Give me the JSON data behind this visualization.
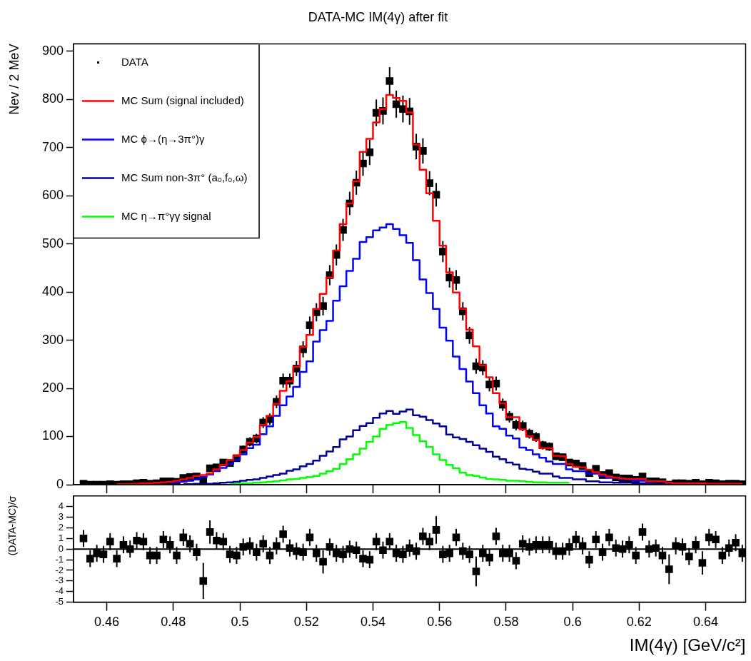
{
  "chart_data": [
    {
      "type": "step",
      "title": "DATA-MC IM(4γ) after fit",
      "ylabel": "Nev / 2 MeV",
      "legend": "top left",
      "tick_labels": "y",
      "xlim": [
        0.45,
        0.652
      ],
      "xticks": [
        0.46,
        0.48,
        0.5,
        0.52,
        0.54,
        0.56,
        0.58,
        0.6,
        0.62,
        0.64
      ],
      "ylim": [
        0,
        915
      ],
      "yticks": [
        0,
        100,
        200,
        300,
        400,
        500,
        600,
        700,
        800,
        900
      ],
      "x": [
        0.453,
        0.455,
        0.457,
        0.459,
        0.461,
        0.463,
        0.465,
        0.467,
        0.469,
        0.471,
        0.473,
        0.475,
        0.477,
        0.479,
        0.481,
        0.483,
        0.485,
        0.487,
        0.489,
        0.491,
        0.493,
        0.495,
        0.497,
        0.499,
        0.501,
        0.503,
        0.505,
        0.507,
        0.509,
        0.511,
        0.513,
        0.515,
        0.517,
        0.519,
        0.521,
        0.523,
        0.525,
        0.527,
        0.529,
        0.531,
        0.533,
        0.535,
        0.537,
        0.539,
        0.541,
        0.543,
        0.545,
        0.547,
        0.549,
        0.551,
        0.553,
        0.555,
        0.557,
        0.559,
        0.561,
        0.563,
        0.565,
        0.567,
        0.569,
        0.571,
        0.573,
        0.575,
        0.577,
        0.579,
        0.581,
        0.583,
        0.585,
        0.587,
        0.589,
        0.591,
        0.593,
        0.595,
        0.597,
        0.599,
        0.601,
        0.603,
        0.605,
        0.607,
        0.609,
        0.611,
        0.613,
        0.615,
        0.617,
        0.619,
        0.621,
        0.623,
        0.625,
        0.627,
        0.629,
        0.631,
        0.633,
        0.635,
        0.637,
        0.639,
        0.641,
        0.643,
        0.645,
        0.647,
        0.649,
        0.651
      ],
      "series": [
        {
          "name": "DATA",
          "type": "scatter",
          "marker": "square",
          "color": "#000000",
          "values": [
            2,
            0,
            0,
            0,
            1,
            0,
            1,
            1,
            3,
            4,
            2,
            3,
            7,
            7,
            6,
            14,
            16,
            17,
            8,
            34,
            36,
            46,
            45,
            55,
            73,
            89,
            96,
            129,
            136,
            172,
            216,
            216,
            241,
            281,
            331,
            358,
            371,
            435,
            477,
            529,
            584,
            627,
            667,
            690,
            772,
            776,
            838,
            790,
            780,
            775,
            702,
            693,
            626,
            602,
            484,
            430,
            425,
            360,
            310,
            246,
            243,
            208,
            210,
            166,
            141,
            124,
            122,
            106,
            99,
            82,
            79,
            59,
            57,
            46,
            44,
            39,
            24,
            33,
            20,
            24,
            15,
            13,
            13,
            10,
            17,
            7,
            7,
            5,
            0,
            3,
            3,
            2,
            4,
            1,
            4,
            3,
            1,
            2,
            2,
            1
          ],
          "errors": [
            null,
            null,
            null,
            null,
            null,
            null,
            null,
            null,
            1.7,
            2,
            null,
            1.7,
            2.6,
            2.6,
            2.4,
            3.7,
            4,
            4.1,
            2.8,
            5.8,
            6,
            6.8,
            6.7,
            7.4,
            8.5,
            9.4,
            9.8,
            11.4,
            11.7,
            13.1,
            14.7,
            14.7,
            15.5,
            16.8,
            18.2,
            18.9,
            19.3,
            20.9,
            21.8,
            23,
            24.2,
            25,
            25.8,
            26.3,
            27.8,
            27.9,
            28.9,
            28.1,
            27.9,
            27.8,
            26.5,
            26.3,
            25,
            24.5,
            22,
            20.7,
            20.6,
            19,
            17.6,
            15.7,
            15.6,
            14.4,
            14.5,
            12.9,
            11.9,
            11.1,
            11,
            10.3,
            9.9,
            9.1,
            8.9,
            7.7,
            7.5,
            6.8,
            6.6,
            6.2,
            4.9,
            5.7,
            4.5,
            4.9,
            3.9,
            3.6,
            3.6,
            3.2,
            4.1,
            2.6,
            2.6,
            2.2,
            null,
            1.7,
            1.7,
            null,
            2,
            null,
            2,
            1.7,
            null,
            null,
            null,
            null
          ]
        },
        {
          "name": "MC Sum (signal included)",
          "type": "step",
          "color": "#ff0000",
          "values": [
            null,
            null,
            null,
            null,
            null,
            1,
            1,
            1,
            2,
            3,
            3,
            4,
            5,
            6,
            8,
            11,
            14,
            18,
            20,
            23,
            32,
            41,
            51,
            60,
            72,
            87,
            99,
            124,
            143,
            168,
            195,
            215,
            245,
            286,
            311,
            365,
            396,
            430,
            486,
            541,
            584,
            630,
            691,
            718,
            752,
            780,
            809,
            803,
            797,
            773,
            706,
            654,
            605,
            548,
            496,
            441,
            399,
            365,
            322,
            287,
            248,
            223,
            190,
            169,
            140,
            140,
            115,
            101,
            93,
            76,
            76,
            60,
            59,
            43,
            37,
            36,
            31,
            26,
            21,
            17,
            15,
            13,
            12,
            12,
            12,
            7,
            7,
            7,
            4,
            3,
            3,
            3,
            3,
            3,
            2,
            2,
            2,
            2,
            2,
            2
          ]
        },
        {
          "name": "MC ϕ→(η→3π°)γ",
          "type": "step",
          "color": "#0000ff",
          "values": [
            null,
            null,
            null,
            null,
            null,
            null,
            null,
            null,
            null,
            null,
            null,
            null,
            null,
            4,
            5,
            6,
            8,
            11,
            16,
            21,
            28,
            35,
            43,
            51,
            63,
            76,
            83,
            105,
            121,
            143,
            165,
            183,
            203,
            234,
            256,
            297,
            321,
            340,
            382,
            412,
            444,
            469,
            504,
            514,
            528,
            534,
            541,
            531,
            518,
            502,
            466,
            426,
            398,
            365,
            326,
            299,
            266,
            240,
            214,
            190,
            165,
            148,
            121,
            116,
            102,
            96,
            77,
            72,
            63,
            56,
            48,
            43,
            43,
            32,
            28,
            28,
            23,
            23,
            18,
            14,
            14,
            11,
            11,
            8,
            8,
            7,
            7,
            null,
            null,
            null,
            null,
            null,
            null,
            null,
            null,
            null,
            null,
            null,
            null,
            null
          ]
        },
        {
          "name": "MC Sum non-3π° (a₀,f₀,ω)",
          "type": "step",
          "color": "#000099",
          "values": [
            null,
            null,
            null,
            null,
            null,
            null,
            null,
            null,
            null,
            null,
            null,
            null,
            null,
            null,
            null,
            1,
            1,
            2,
            2,
            2,
            3,
            4,
            5,
            6,
            8,
            10,
            11,
            14,
            17,
            20,
            23,
            29,
            32,
            38,
            43,
            50,
            60,
            69,
            78,
            94,
            100,
            113,
            122,
            128,
            139,
            148,
            153,
            147,
            152,
            156,
            144,
            141,
            134,
            127,
            121,
            104,
            98,
            95,
            89,
            82,
            75,
            68,
            58,
            53,
            46,
            42,
            33,
            31,
            27,
            23,
            23,
            17,
            14,
            14,
            11,
            11,
            7,
            7,
            5,
            5,
            4,
            4,
            4,
            3,
            3,
            3,
            2,
            2,
            2,
            2,
            null,
            null,
            null,
            null,
            null,
            null,
            null,
            null,
            null,
            null
          ]
        },
        {
          "name": "MC η→π°γγ signal",
          "type": "step",
          "color": "#00ff00",
          "values": [
            null,
            null,
            null,
            null,
            null,
            null,
            null,
            null,
            null,
            null,
            null,
            null,
            null,
            null,
            null,
            null,
            null,
            null,
            null,
            null,
            null,
            null,
            2,
            2,
            3,
            3,
            4,
            5,
            6,
            7,
            9,
            11,
            12,
            14,
            16,
            18,
            23,
            28,
            33,
            43,
            53,
            63,
            75,
            89,
            100,
            116,
            124,
            128,
            130,
            118,
            103,
            90,
            78,
            63,
            51,
            41,
            34,
            25,
            20,
            18,
            15,
            12,
            11,
            10,
            8,
            8,
            7,
            6,
            5,
            5,
            4,
            4,
            4,
            4,
            null,
            null,
            null,
            null,
            null,
            null,
            null,
            null,
            null,
            null,
            null,
            null,
            null,
            null,
            null,
            null,
            null,
            null,
            null,
            null,
            null,
            null,
            null,
            null,
            null,
            null
          ]
        }
      ]
    },
    {
      "type": "scatter",
      "xlabel": "IM(4γ) [GeV/c²]",
      "ylabel": "(DATA-MC)/σ",
      "color": "#000000",
      "marker": "square",
      "xlim": [
        0.45,
        0.652
      ],
      "xticks": [
        0.46,
        0.48,
        0.5,
        0.52,
        0.54,
        0.56,
        0.58,
        0.6,
        0.62,
        0.64
      ],
      "ylim": [
        -5,
        5
      ],
      "yticks": [
        -5,
        -4,
        -3,
        -2,
        -1,
        0,
        1,
        2,
        3,
        4
      ],
      "x": [
        0.453,
        0.455,
        0.457,
        0.459,
        0.461,
        0.463,
        0.465,
        0.467,
        0.469,
        0.471,
        0.473,
        0.475,
        0.477,
        0.479,
        0.481,
        0.483,
        0.485,
        0.487,
        0.489,
        0.491,
        0.493,
        0.495,
        0.497,
        0.499,
        0.501,
        0.503,
        0.505,
        0.507,
        0.509,
        0.511,
        0.513,
        0.515,
        0.517,
        0.519,
        0.521,
        0.523,
        0.525,
        0.527,
        0.529,
        0.531,
        0.533,
        0.535,
        0.537,
        0.539,
        0.541,
        0.543,
        0.545,
        0.547,
        0.549,
        0.551,
        0.553,
        0.555,
        0.557,
        0.559,
        0.561,
        0.563,
        0.565,
        0.567,
        0.569,
        0.571,
        0.573,
        0.575,
        0.577,
        0.579,
        0.581,
        0.583,
        0.585,
        0.587,
        0.589,
        0.591,
        0.593,
        0.595,
        0.597,
        0.599,
        0.601,
        0.603,
        0.605,
        0.607,
        0.609,
        0.611,
        0.613,
        0.615,
        0.617,
        0.619,
        0.621,
        0.623,
        0.625,
        0.627,
        0.629,
        0.631,
        0.633,
        0.635,
        0.637,
        0.639,
        0.641,
        0.643,
        0.645,
        0.647,
        0.649,
        0.651
      ],
      "values": [
        1.0,
        -0.9,
        -0.4,
        -0.5,
        0.7,
        -0.9,
        0.4,
        0.0,
        0.8,
        0.7,
        -0.6,
        -0.6,
        0.9,
        0.4,
        -0.6,
        1.1,
        0.5,
        -0.3,
        -3.0,
        1.6,
        0.8,
        0.7,
        -0.5,
        -0.6,
        0.2,
        0.3,
        -0.3,
        0.5,
        -0.6,
        0.3,
        1.4,
        0.1,
        -0.2,
        -0.3,
        1.1,
        -0.4,
        -1.2,
        0.2,
        -0.4,
        -0.5,
        0.0,
        -0.1,
        -0.9,
        -1.0,
        0.7,
        -0.1,
        0.7,
        -0.4,
        -0.5,
        0.1,
        -0.2,
        1.2,
        0.7,
        1.8,
        -0.5,
        -0.4,
        1.1,
        -0.2,
        -0.5,
        -2.1,
        -0.4,
        -0.8,
        1.2,
        -0.4,
        -0.4,
        -1.1,
        0.5,
        0.2,
        0.4,
        0.4,
        0.4,
        -0.2,
        -0.2,
        0.2,
        0.9,
        0.3,
        -1.0,
        0.9,
        -0.3,
        1.1,
        0.1,
        0.0,
        0.4,
        -0.6,
        1.6,
        0.0,
        0.1,
        -0.6,
        -1.9,
        0.3,
        0.2,
        -0.7,
        0.4,
        -1.3,
        1.1,
        0.9,
        -0.6,
        0.1,
        0.6,
        -0.4
      ],
      "errors": [
        0.8,
        0.8,
        0.8,
        0.8,
        0.8,
        0.8,
        0.8,
        0.8,
        0.8,
        0.8,
        0.8,
        0.8,
        0.8,
        0.8,
        0.8,
        0.8,
        0.8,
        0.8,
        1.7,
        1.1,
        0.8,
        0.8,
        0.8,
        0.8,
        0.8,
        0.8,
        0.8,
        0.8,
        0.8,
        0.8,
        0.8,
        0.8,
        0.8,
        0.8,
        0.8,
        0.8,
        1.1,
        0.8,
        0.8,
        0.8,
        0.8,
        0.8,
        0.8,
        0.8,
        0.8,
        0.8,
        0.8,
        0.8,
        0.8,
        0.8,
        0.8,
        0.8,
        0.8,
        1.3,
        0.8,
        0.8,
        0.8,
        0.8,
        0.8,
        1.4,
        0.8,
        0.8,
        0.8,
        0.8,
        0.8,
        0.8,
        0.8,
        0.8,
        0.8,
        0.8,
        0.8,
        0.8,
        0.8,
        0.8,
        0.8,
        0.8,
        0.8,
        0.8,
        0.8,
        0.8,
        0.8,
        0.8,
        0.8,
        0.8,
        0.8,
        0.8,
        0.8,
        0.8,
        1.4,
        0.8,
        0.8,
        0.8,
        0.8,
        1.1,
        0.8,
        0.8,
        0.8,
        0.8,
        0.8,
        0.8
      ],
      "ref_lines": [
        {
          "axis": "y",
          "value": 0,
          "color": "#000000"
        }
      ]
    }
  ]
}
